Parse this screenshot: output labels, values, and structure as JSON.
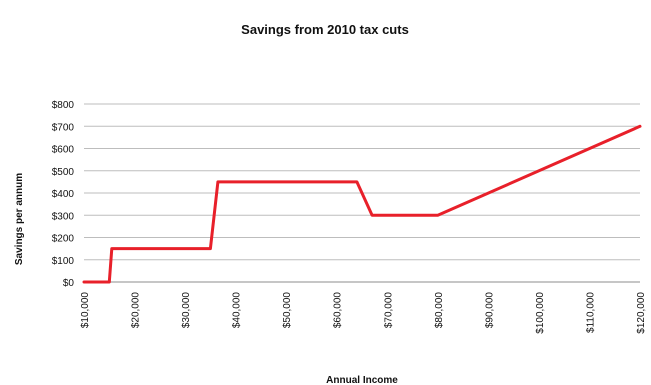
{
  "chart_data": {
    "type": "line",
    "title": "Savings from 2010 tax cuts",
    "xlabel": "Annual Income",
    "ylabel": "Savings per annum",
    "xlim": [
      10000,
      120000
    ],
    "ylim": [
      0,
      800
    ],
    "x_ticks": [
      10000,
      20000,
      30000,
      40000,
      50000,
      60000,
      70000,
      80000,
      90000,
      100000,
      110000,
      120000
    ],
    "x_tick_labels": [
      "$10,000",
      "$20,000",
      "$30,000",
      "$40,000",
      "$50,000",
      "$60,000",
      "$70,000",
      "$80,000",
      "$90,000",
      "$100,000",
      "$110,000",
      "$120,000"
    ],
    "y_ticks": [
      0,
      100,
      200,
      300,
      400,
      500,
      600,
      700,
      800
    ],
    "y_tick_labels": [
      "$0",
      "$100",
      "$200",
      "$300",
      "$400",
      "$500",
      "$600",
      "$700",
      "$800"
    ],
    "grid": true,
    "legend": "none",
    "series": [
      {
        "color": "#e8202a",
        "x": [
          10000,
          15000,
          15500,
          35000,
          36500,
          64000,
          67000,
          80000,
          120000
        ],
        "y": [
          0,
          0,
          150,
          150,
          450,
          450,
          300,
          300,
          700
        ]
      }
    ]
  }
}
